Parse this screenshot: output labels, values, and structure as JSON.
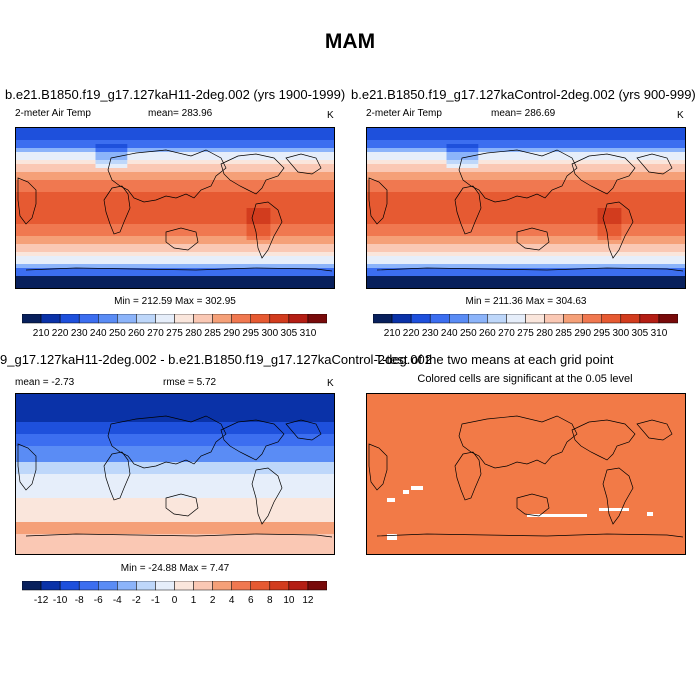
{
  "main_title": "MAM",
  "panels": [
    {
      "title": "b.e21.B1850.f19_g17.127kaH11-2deg.002 (yrs 1900-1999)",
      "var_label": "2-meter Air Temp",
      "stat_label": "mean= 283.96",
      "units": "K",
      "minmax": "Min = 212.59 Max = 302.95",
      "colorbar_labels": [
        "210",
        "220",
        "230",
        "240",
        "250",
        "260",
        "270",
        "275",
        "280",
        "285",
        "290",
        "295",
        "300",
        "305",
        "310"
      ],
      "field": "temperature"
    },
    {
      "title": "b.e21.B1850.f19_g17.127kaControl-2deg.002 (yrs 900-999)",
      "var_label": "2-meter Air Temp",
      "stat_label": "mean= 286.69",
      "units": "K",
      "minmax": "Min = 211.36 Max = 304.63",
      "colorbar_labels": [
        "210",
        "220",
        "230",
        "240",
        "250",
        "260",
        "270",
        "275",
        "280",
        "285",
        "290",
        "295",
        "300",
        "305",
        "310"
      ],
      "field": "temperature"
    },
    {
      "title": "9_g17.127kaH11-2deg.002 - b.e21.B1850.f19_g17.127kaControl-2deg.002",
      "stat_label": "mean = -2.73",
      "rmse_label": "rmse = 5.72",
      "units": "K",
      "minmax": "Min = -24.88 Max = 7.47",
      "colorbar_labels": [
        "-12",
        "-10",
        "-8",
        "-6",
        "-4",
        "-2",
        "-1",
        "0",
        "1",
        "2",
        "4",
        "6",
        "8",
        "10",
        "12"
      ],
      "field": "difference"
    },
    {
      "title": "T-test of the two means at each grid point",
      "subtitle": "Colored cells are significant at the 0.05 level",
      "field": "ttest"
    }
  ],
  "colors": {
    "temperature_scale": [
      "#08205c",
      "#0a32a8",
      "#1e50dc",
      "#3c6ef0",
      "#5a8cf5",
      "#8cb4fa",
      "#bed7fa",
      "#e6eefa",
      "#fae6dc",
      "#fac8b4",
      "#f5a078",
      "#f07850",
      "#e65a32",
      "#d23c1e",
      "#b41e14",
      "#780a0a"
    ],
    "difference_scale": [
      "#08205c",
      "#0a32a8",
      "#1e50dc",
      "#3c6ef0",
      "#5a8cf5",
      "#8cb4fa",
      "#bed7fa",
      "#e6eefa",
      "#fae6dc",
      "#fac8b4",
      "#f5a078",
      "#f07850",
      "#e65a32",
      "#d23c1e",
      "#b41e14",
      "#780a0a"
    ],
    "ttest_fill": "#f27a47"
  }
}
